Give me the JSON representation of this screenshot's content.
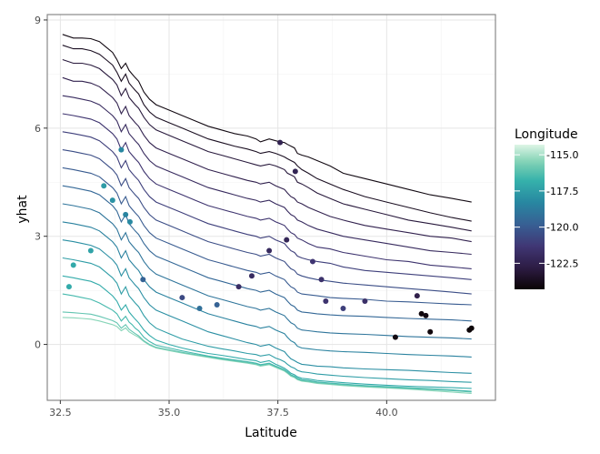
{
  "chart_data": {
    "type": "line",
    "title": "",
    "xlabel": "Latitude",
    "ylabel": "yhat",
    "xlim": [
      32.2,
      42.5
    ],
    "ylim": [
      -1.55,
      9.15
    ],
    "x_ticks": [
      32.5,
      35.0,
      37.5,
      40.0
    ],
    "x_tick_labels": [
      "32.5",
      "35.0",
      "37.5",
      "40.0"
    ],
    "y_ticks": [
      0,
      3,
      6,
      9
    ],
    "y_tick_labels": [
      "0",
      "3",
      "6",
      "9"
    ],
    "grid": true,
    "legend": {
      "title": "Longitude",
      "placement": "right",
      "range": [
        -124.3,
        -114.3
      ],
      "breaks": [
        -115.0,
        -117.5,
        -120.0,
        -122.5
      ],
      "break_labels": [
        "-115.0",
        "-117.5",
        "-120.0",
        "-122.5"
      ],
      "colormap": "mako"
    },
    "profile_x": [
      32.55,
      32.8,
      33.0,
      33.2,
      33.4,
      33.55,
      33.7,
      33.8,
      33.9,
      34.0,
      34.08,
      34.15,
      34.22,
      34.3,
      34.42,
      34.55,
      34.7,
      35.0,
      35.3,
      35.6,
      35.9,
      36.2,
      36.5,
      36.8,
      37.0,
      37.1,
      37.3,
      37.45,
      37.55,
      37.65,
      37.72,
      37.8,
      37.88,
      37.95,
      38.05,
      38.2,
      38.4,
      38.7,
      39.0,
      39.5,
      40.0,
      40.5,
      41.0,
      41.5,
      41.95
    ],
    "series": [
      {
        "longitude": -124.0,
        "values": [
          8.6,
          8.5,
          8.5,
          8.48,
          8.4,
          8.25,
          8.1,
          7.9,
          7.65,
          7.8,
          7.6,
          7.5,
          7.4,
          7.3,
          7.0,
          6.8,
          6.65,
          6.5,
          6.35,
          6.2,
          6.05,
          5.95,
          5.85,
          5.78,
          5.7,
          5.62,
          5.7,
          5.65,
          5.62,
          5.6,
          5.55,
          5.5,
          5.45,
          5.3,
          5.25,
          5.2,
          5.1,
          4.95,
          4.75,
          4.6,
          4.45,
          4.3,
          4.15,
          4.05,
          3.95
        ]
      },
      {
        "longitude": -123.6,
        "values": [
          8.3,
          8.2,
          8.2,
          8.15,
          8.05,
          7.9,
          7.75,
          7.55,
          7.3,
          7.5,
          7.25,
          7.15,
          7.05,
          6.95,
          6.65,
          6.45,
          6.3,
          6.15,
          6.0,
          5.85,
          5.7,
          5.6,
          5.5,
          5.42,
          5.35,
          5.3,
          5.35,
          5.3,
          5.25,
          5.2,
          5.15,
          5.1,
          5.05,
          4.95,
          4.85,
          4.75,
          4.6,
          4.45,
          4.3,
          4.1,
          3.95,
          3.8,
          3.65,
          3.52,
          3.42
        ]
      },
      {
        "longitude": -123.0,
        "values": [
          7.9,
          7.8,
          7.8,
          7.75,
          7.65,
          7.5,
          7.35,
          7.2,
          6.9,
          7.1,
          6.85,
          6.75,
          6.65,
          6.55,
          6.3,
          6.1,
          5.95,
          5.8,
          5.65,
          5.5,
          5.35,
          5.25,
          5.15,
          5.05,
          4.98,
          4.95,
          5.0,
          4.95,
          4.9,
          4.85,
          4.75,
          4.7,
          4.65,
          4.5,
          4.45,
          4.35,
          4.2,
          4.05,
          3.9,
          3.75,
          3.6,
          3.45,
          3.35,
          3.25,
          3.15
        ]
      },
      {
        "longitude": -122.5,
        "values": [
          7.4,
          7.3,
          7.3,
          7.25,
          7.15,
          7.0,
          6.85,
          6.7,
          6.4,
          6.6,
          6.35,
          6.25,
          6.15,
          6.05,
          5.8,
          5.6,
          5.45,
          5.3,
          5.15,
          5.0,
          4.85,
          4.75,
          4.65,
          4.55,
          4.5,
          4.45,
          4.5,
          4.4,
          4.35,
          4.3,
          4.2,
          4.1,
          4.05,
          3.95,
          3.9,
          3.8,
          3.7,
          3.55,
          3.45,
          3.3,
          3.2,
          3.1,
          3.0,
          2.95,
          2.85
        ]
      },
      {
        "longitude": -122.0,
        "values": [
          6.9,
          6.85,
          6.8,
          6.75,
          6.65,
          6.5,
          6.35,
          6.2,
          5.9,
          6.1,
          5.85,
          5.75,
          5.65,
          5.55,
          5.3,
          5.1,
          4.95,
          4.8,
          4.65,
          4.5,
          4.35,
          4.25,
          4.15,
          4.05,
          4.0,
          3.95,
          4.0,
          3.9,
          3.85,
          3.8,
          3.7,
          3.6,
          3.55,
          3.45,
          3.4,
          3.3,
          3.2,
          3.1,
          3.0,
          2.9,
          2.8,
          2.7,
          2.6,
          2.55,
          2.5
        ]
      },
      {
        "longitude": -121.5,
        "values": [
          6.4,
          6.35,
          6.3,
          6.25,
          6.15,
          6.0,
          5.85,
          5.7,
          5.4,
          5.6,
          5.35,
          5.25,
          5.15,
          5.05,
          4.8,
          4.6,
          4.45,
          4.3,
          4.15,
          4.0,
          3.85,
          3.75,
          3.65,
          3.55,
          3.5,
          3.45,
          3.5,
          3.4,
          3.35,
          3.3,
          3.2,
          3.1,
          3.05,
          2.95,
          2.9,
          2.8,
          2.7,
          2.65,
          2.55,
          2.45,
          2.35,
          2.3,
          2.2,
          2.15,
          2.1
        ]
      },
      {
        "longitude": -121.0,
        "values": [
          5.9,
          5.85,
          5.8,
          5.75,
          5.65,
          5.5,
          5.35,
          5.2,
          4.9,
          5.1,
          4.85,
          4.75,
          4.65,
          4.55,
          4.3,
          4.1,
          3.95,
          3.8,
          3.65,
          3.5,
          3.35,
          3.25,
          3.15,
          3.05,
          3.0,
          2.95,
          3.0,
          2.9,
          2.85,
          2.8,
          2.7,
          2.6,
          2.55,
          2.45,
          2.4,
          2.35,
          2.3,
          2.25,
          2.15,
          2.05,
          2.0,
          1.95,
          1.9,
          1.85,
          1.8
        ]
      },
      {
        "longitude": -120.5,
        "values": [
          5.4,
          5.35,
          5.3,
          5.25,
          5.15,
          5.0,
          4.85,
          4.7,
          4.4,
          4.6,
          4.35,
          4.25,
          4.15,
          4.05,
          3.8,
          3.6,
          3.45,
          3.3,
          3.15,
          3.0,
          2.85,
          2.75,
          2.65,
          2.55,
          2.5,
          2.45,
          2.5,
          2.4,
          2.35,
          2.3,
          2.2,
          2.1,
          2.05,
          1.95,
          1.9,
          1.85,
          1.8,
          1.75,
          1.7,
          1.65,
          1.6,
          1.55,
          1.5,
          1.45,
          1.4
        ]
      },
      {
        "longitude": -120.0,
        "values": [
          4.9,
          4.85,
          4.8,
          4.75,
          4.65,
          4.5,
          4.35,
          4.2,
          3.9,
          4.1,
          3.85,
          3.75,
          3.65,
          3.55,
          3.3,
          3.1,
          2.95,
          2.8,
          2.65,
          2.5,
          2.35,
          2.25,
          2.15,
          2.05,
          2.0,
          1.95,
          2.0,
          1.9,
          1.85,
          1.8,
          1.7,
          1.6,
          1.55,
          1.45,
          1.4,
          1.38,
          1.35,
          1.3,
          1.28,
          1.25,
          1.2,
          1.18,
          1.15,
          1.12,
          1.1
        ]
      },
      {
        "longitude": -119.5,
        "values": [
          4.4,
          4.35,
          4.3,
          4.25,
          4.15,
          4.0,
          3.85,
          3.7,
          3.4,
          3.6,
          3.35,
          3.25,
          3.15,
          3.05,
          2.8,
          2.6,
          2.45,
          2.3,
          2.15,
          2.0,
          1.85,
          1.75,
          1.65,
          1.55,
          1.5,
          1.45,
          1.5,
          1.4,
          1.35,
          1.3,
          1.2,
          1.1,
          1.05,
          0.95,
          0.9,
          0.88,
          0.85,
          0.82,
          0.8,
          0.78,
          0.75,
          0.72,
          0.7,
          0.68,
          0.65
        ]
      },
      {
        "longitude": -119.0,
        "values": [
          3.9,
          3.85,
          3.8,
          3.75,
          3.65,
          3.5,
          3.35,
          3.2,
          2.9,
          3.1,
          2.85,
          2.75,
          2.65,
          2.55,
          2.3,
          2.1,
          1.95,
          1.8,
          1.65,
          1.5,
          1.35,
          1.25,
          1.15,
          1.05,
          1.0,
          0.95,
          1.0,
          0.9,
          0.85,
          0.8,
          0.7,
          0.6,
          0.55,
          0.45,
          0.4,
          0.38,
          0.35,
          0.32,
          0.3,
          0.28,
          0.25,
          0.22,
          0.2,
          0.18,
          0.15
        ]
      },
      {
        "longitude": -118.5,
        "values": [
          3.4,
          3.35,
          3.3,
          3.25,
          3.15,
          3.0,
          2.85,
          2.7,
          2.4,
          2.6,
          2.35,
          2.25,
          2.15,
          2.05,
          1.8,
          1.6,
          1.45,
          1.3,
          1.15,
          1.0,
          0.85,
          0.75,
          0.65,
          0.55,
          0.5,
          0.45,
          0.5,
          0.4,
          0.35,
          0.3,
          0.2,
          0.1,
          0.05,
          -0.05,
          -0.1,
          -0.12,
          -0.15,
          -0.18,
          -0.2,
          -0.22,
          -0.25,
          -0.28,
          -0.3,
          -0.32,
          -0.35
        ]
      },
      {
        "longitude": -118.0,
        "values": [
          2.9,
          2.85,
          2.8,
          2.75,
          2.65,
          2.5,
          2.35,
          2.2,
          1.9,
          2.1,
          1.85,
          1.75,
          1.65,
          1.55,
          1.3,
          1.1,
          0.95,
          0.8,
          0.65,
          0.5,
          0.35,
          0.25,
          0.15,
          0.05,
          0.0,
          -0.05,
          0.0,
          -0.1,
          -0.15,
          -0.2,
          -0.3,
          -0.4,
          -0.45,
          -0.5,
          -0.55,
          -0.57,
          -0.6,
          -0.62,
          -0.65,
          -0.68,
          -0.7,
          -0.72,
          -0.75,
          -0.78,
          -0.8
        ]
      },
      {
        "longitude": -117.5,
        "values": [
          2.4,
          2.35,
          2.3,
          2.25,
          2.15,
          2.0,
          1.85,
          1.7,
          1.4,
          1.6,
          1.35,
          1.25,
          1.15,
          1.05,
          0.8,
          0.6,
          0.45,
          0.3,
          0.15,
          0.05,
          -0.05,
          -0.12,
          -0.18,
          -0.25,
          -0.28,
          -0.32,
          -0.28,
          -0.38,
          -0.42,
          -0.48,
          -0.55,
          -0.62,
          -0.66,
          -0.72,
          -0.76,
          -0.78,
          -0.82,
          -0.85,
          -0.88,
          -0.92,
          -0.95,
          -0.98,
          -1.0,
          -1.03,
          -1.05
        ]
      },
      {
        "longitude": -117.0,
        "values": [
          1.9,
          1.85,
          1.8,
          1.75,
          1.65,
          1.5,
          1.35,
          1.2,
          0.95,
          1.1,
          0.9,
          0.8,
          0.7,
          0.6,
          0.4,
          0.25,
          0.12,
          0.0,
          -0.1,
          -0.18,
          -0.25,
          -0.3,
          -0.36,
          -0.42,
          -0.45,
          -0.5,
          -0.45,
          -0.55,
          -0.6,
          -0.66,
          -0.72,
          -0.8,
          -0.84,
          -0.9,
          -0.94,
          -0.96,
          -1.0,
          -1.03,
          -1.06,
          -1.1,
          -1.13,
          -1.16,
          -1.18,
          -1.2,
          -1.22
        ]
      },
      {
        "longitude": -116.5,
        "values": [
          1.4,
          1.35,
          1.3,
          1.25,
          1.15,
          1.05,
          0.95,
          0.85,
          0.65,
          0.78,
          0.62,
          0.55,
          0.45,
          0.38,
          0.2,
          0.08,
          -0.02,
          -0.1,
          -0.18,
          -0.25,
          -0.32,
          -0.38,
          -0.43,
          -0.48,
          -0.52,
          -0.56,
          -0.52,
          -0.6,
          -0.65,
          -0.7,
          -0.76,
          -0.84,
          -0.88,
          -0.94,
          -0.98,
          -1.0,
          -1.04,
          -1.07,
          -1.1,
          -1.14,
          -1.17,
          -1.2,
          -1.23,
          -1.26,
          -1.3
        ]
      },
      {
        "longitude": -116.0,
        "values": [
          0.9,
          0.88,
          0.86,
          0.84,
          0.78,
          0.72,
          0.66,
          0.6,
          0.45,
          0.55,
          0.42,
          0.36,
          0.3,
          0.24,
          0.1,
          0.0,
          -0.08,
          -0.15,
          -0.22,
          -0.28,
          -0.34,
          -0.4,
          -0.45,
          -0.5,
          -0.54,
          -0.58,
          -0.54,
          -0.62,
          -0.67,
          -0.72,
          -0.78,
          -0.86,
          -0.9,
          -0.96,
          -1.0,
          -1.02,
          -1.06,
          -1.09,
          -1.12,
          -1.16,
          -1.19,
          -1.22,
          -1.25,
          -1.28,
          -1.32
        ]
      },
      {
        "longitude": -115.4,
        "values": [
          0.75,
          0.74,
          0.72,
          0.7,
          0.65,
          0.6,
          0.55,
          0.5,
          0.38,
          0.46,
          0.35,
          0.3,
          0.25,
          0.2,
          0.08,
          -0.02,
          -0.1,
          -0.17,
          -0.24,
          -0.3,
          -0.36,
          -0.42,
          -0.47,
          -0.52,
          -0.56,
          -0.6,
          -0.56,
          -0.64,
          -0.69,
          -0.74,
          -0.8,
          -0.88,
          -0.92,
          -0.98,
          -1.02,
          -1.04,
          -1.08,
          -1.11,
          -1.14,
          -1.18,
          -1.21,
          -1.24,
          -1.28,
          -1.32,
          -1.36
        ]
      }
    ],
    "points": [
      {
        "x": 37.55,
        "y": 5.6,
        "longitude": -122.4
      },
      {
        "x": 37.9,
        "y": 4.8,
        "longitude": -122.3
      },
      {
        "x": 38.6,
        "y": 1.2,
        "longitude": -121.5
      },
      {
        "x": 39.0,
        "y": 1.0,
        "longitude": -121.0
      },
      {
        "x": 40.2,
        "y": 0.2,
        "longitude": -124.0
      },
      {
        "x": 40.7,
        "y": 1.35,
        "longitude": -122.6
      },
      {
        "x": 40.8,
        "y": 0.85,
        "longitude": -124.1
      },
      {
        "x": 40.9,
        "y": 0.8,
        "longitude": -124.0
      },
      {
        "x": 41.0,
        "y": 0.35,
        "longitude": -124.1
      },
      {
        "x": 41.9,
        "y": 0.4,
        "longitude": -124.2
      },
      {
        "x": 41.95,
        "y": 0.45,
        "longitude": -124.2
      },
      {
        "x": 34.0,
        "y": 3.6,
        "longitude": -118.4
      },
      {
        "x": 34.1,
        "y": 3.4,
        "longitude": -118.2
      },
      {
        "x": 33.7,
        "y": 4.0,
        "longitude": -117.9
      },
      {
        "x": 33.5,
        "y": 4.4,
        "longitude": -117.6
      },
      {
        "x": 33.9,
        "y": 5.4,
        "longitude": -118.3
      },
      {
        "x": 32.8,
        "y": 2.2,
        "longitude": -117.1
      },
      {
        "x": 32.7,
        "y": 1.6,
        "longitude": -117.0
      },
      {
        "x": 33.2,
        "y": 2.6,
        "longitude": -117.3
      },
      {
        "x": 34.4,
        "y": 1.8,
        "longitude": -119.7
      },
      {
        "x": 36.6,
        "y": 1.6,
        "longitude": -121.8
      },
      {
        "x": 36.9,
        "y": 1.9,
        "longitude": -121.9
      },
      {
        "x": 37.3,
        "y": 2.6,
        "longitude": -122.0
      },
      {
        "x": 37.7,
        "y": 2.9,
        "longitude": -122.2
      },
      {
        "x": 38.3,
        "y": 2.3,
        "longitude": -121.4
      },
      {
        "x": 38.5,
        "y": 1.8,
        "longitude": -121.6
      },
      {
        "x": 39.5,
        "y": 1.2,
        "longitude": -121.7
      },
      {
        "x": 35.3,
        "y": 1.3,
        "longitude": -120.6
      },
      {
        "x": 35.7,
        "y": 1.0,
        "longitude": -119.2
      },
      {
        "x": 36.1,
        "y": 1.1,
        "longitude": -119.7
      }
    ]
  }
}
